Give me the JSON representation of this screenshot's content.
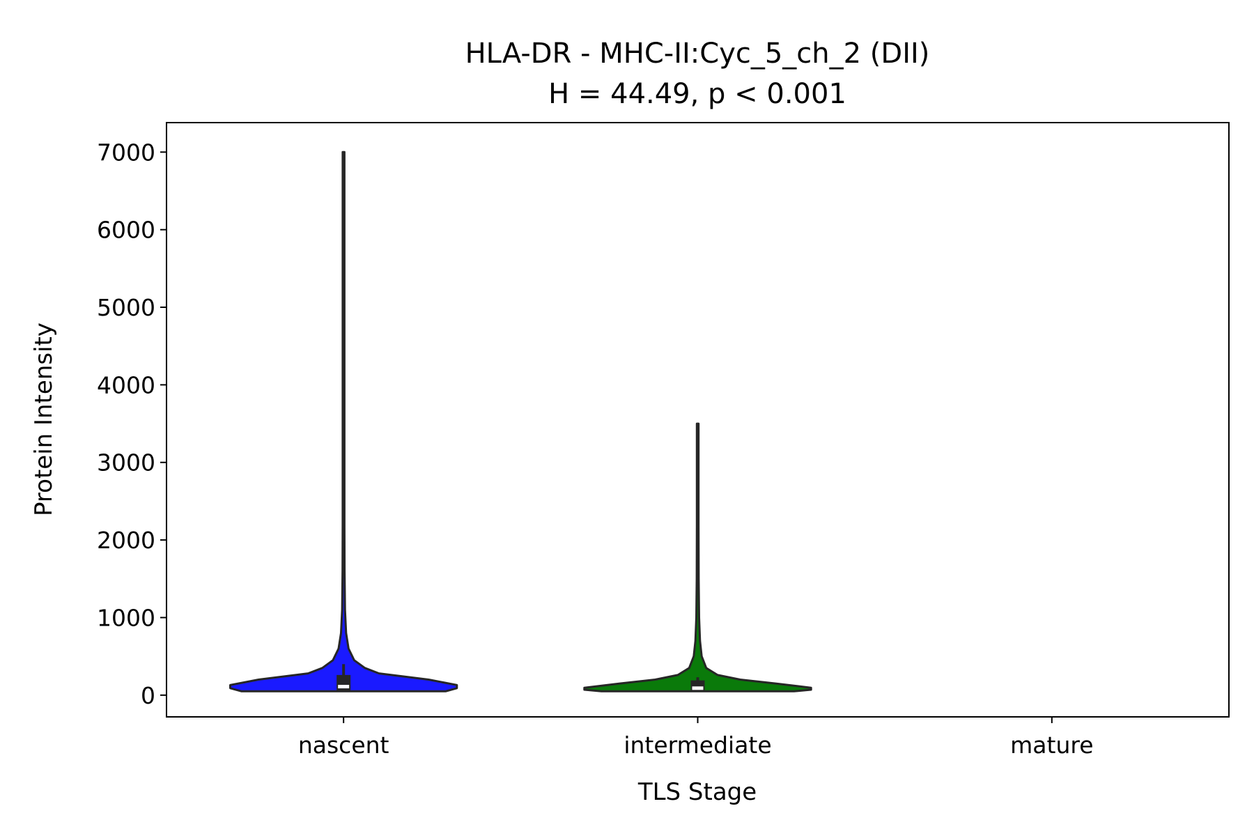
{
  "chart_data": {
    "type": "violin",
    "title": "HLA-DR - MHC-II:Cyc_5_ch_2 (DII)",
    "subtitle": "H = 44.49, p < 0.001",
    "xlabel": "TLS Stage",
    "ylabel": "Protein Intensity",
    "categories": [
      "nascent",
      "intermediate",
      "mature"
    ],
    "ylim": [
      -280,
      7380
    ],
    "yticks": [
      0,
      1000,
      2000,
      3000,
      4000,
      5000,
      6000,
      7000
    ],
    "yticklabels": [
      "0",
      "1000",
      "2000",
      "3000",
      "4000",
      "5000",
      "6000",
      "7000"
    ],
    "grid": false,
    "legend": "none",
    "series": [
      {
        "category": "nascent",
        "color": "#1a1aff",
        "min": 50,
        "max": 7000,
        "q1": 60,
        "median": 110,
        "q3": 260,
        "whisker_low": 50,
        "whisker_high": 400,
        "density": [
          {
            "y": 50,
            "w": 0.72
          },
          {
            "y": 90,
            "w": 0.8
          },
          {
            "y": 130,
            "w": 0.8
          },
          {
            "y": 200,
            "w": 0.6
          },
          {
            "y": 280,
            "w": 0.25
          },
          {
            "y": 350,
            "w": 0.15
          },
          {
            "y": 450,
            "w": 0.075
          },
          {
            "y": 600,
            "w": 0.035
          },
          {
            "y": 800,
            "w": 0.018
          },
          {
            "y": 1100,
            "w": 0.01
          },
          {
            "y": 1600,
            "w": 0.007
          },
          {
            "y": 2200,
            "w": 0.006
          },
          {
            "y": 3500,
            "w": 0.006
          },
          {
            "y": 5000,
            "w": 0.006
          },
          {
            "y": 6500,
            "w": 0.006
          },
          {
            "y": 7000,
            "w": 0.006
          }
        ]
      },
      {
        "category": "intermediate",
        "color": "#0a7a0a",
        "min": 50,
        "max": 3500,
        "q1": 60,
        "median": 90,
        "q3": 190,
        "whisker_low": 50,
        "whisker_high": 230,
        "density": [
          {
            "y": 50,
            "w": 0.68
          },
          {
            "y": 70,
            "w": 0.8
          },
          {
            "y": 95,
            "w": 0.8
          },
          {
            "y": 150,
            "w": 0.55
          },
          {
            "y": 200,
            "w": 0.3
          },
          {
            "y": 260,
            "w": 0.14
          },
          {
            "y": 350,
            "w": 0.06
          },
          {
            "y": 500,
            "w": 0.028
          },
          {
            "y": 700,
            "w": 0.016
          },
          {
            "y": 1000,
            "w": 0.01
          },
          {
            "y": 1500,
            "w": 0.007
          },
          {
            "y": 2200,
            "w": 0.006
          },
          {
            "y": 3000,
            "w": 0.006
          },
          {
            "y": 3500,
            "w": 0.006
          }
        ]
      }
    ]
  }
}
